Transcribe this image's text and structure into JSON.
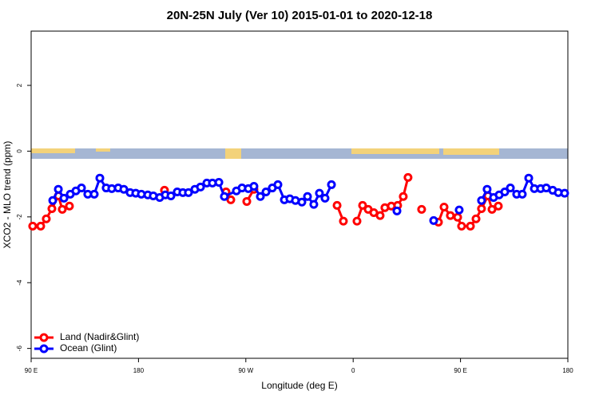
{
  "chart_data": {
    "type": "line",
    "title": "20N-25N July (Ver 10)   2015-01-01 to 2020-12-18",
    "x_label": "Longitude (deg E)",
    "y_label": "XCO2 - MLO trend (ppm)",
    "xlim": [
      90,
      540
    ],
    "ylim": [
      -6.3,
      3.65
    ],
    "xticks": [
      {
        "value": 90,
        "label": "90 E"
      },
      {
        "value": 180,
        "label": "180"
      },
      {
        "value": 270,
        "label": "90 W"
      },
      {
        "value": 360,
        "label": "0"
      },
      {
        "value": 450,
        "label": "90 E"
      },
      {
        "value": 540,
        "label": "180"
      }
    ],
    "yticks": [
      -6,
      -4,
      -2,
      0,
      2
    ],
    "legend": "bottomleft",
    "series": [
      {
        "name": "Land (Nadir&Glint)",
        "color": "#ff0000",
        "x": [
          91.3,
          98.0,
          102.7,
          107.4,
          112.8,
          116.1,
          122.1,
          null,
          201.8,
          null,
          253.4,
          257.4,
          null,
          270.8,
          276.8,
          null,
          346.5,
          351.8,
          null,
          363.2,
          367.9,
          372.6,
          377.3,
          382.6,
          386.6,
          392.0,
          397.3,
          402.0,
          406.0,
          null,
          417.4,
          null,
          431.5,
          436.2,
          441.5,
          447.6,
          450.9,
          458.3,
          463.0,
          467.6,
          473.0,
          476.4,
          481.7
        ],
        "values": [
          -2.28,
          -2.28,
          -2.06,
          -1.75,
          -1.36,
          -1.77,
          -1.67,
          null,
          -1.19,
          null,
          -1.24,
          -1.48,
          null,
          -1.53,
          -1.16,
          null,
          -1.65,
          -2.13,
          null,
          -2.13,
          -1.65,
          -1.77,
          -1.87,
          -1.96,
          -1.72,
          -1.67,
          -1.65,
          -1.38,
          -0.8,
          null,
          -1.77,
          null,
          -2.16,
          -1.7,
          -1.96,
          -2.01,
          -2.28,
          -2.28,
          -2.06,
          -1.75,
          -1.36,
          -1.77,
          -1.67
        ]
      },
      {
        "name": "Ocean (Glint)",
        "color": "#0000ff",
        "x": [
          108.1,
          112.8,
          117.5,
          122.8,
          127.5,
          132.2,
          137.5,
          142.9,
          147.6,
          152.9,
          157.6,
          163.0,
          167.7,
          173.0,
          177.7,
          182.4,
          187.8,
          192.4,
          197.8,
          202.5,
          207.2,
          212.5,
          217.2,
          221.9,
          227.3,
          232.0,
          237.3,
          242.0,
          247.4,
          252.0,
          262.1,
          266.8,
          272.1,
          276.8,
          282.2,
          286.9,
          292.2,
          296.9,
          302.3,
          306.9,
          311.6,
          317.0,
          321.7,
          327.0,
          331.7,
          336.4,
          341.8,
          null,
          396.7,
          null,
          427.5,
          null,
          448.9,
          null,
          467.6,
          472.3,
          477.7,
          482.4,
          487.1,
          491.8,
          497.1,
          501.8,
          507.2,
          511.9,
          517.2,
          521.9,
          527.3,
          532.0,
          537.3
        ],
        "values": [
          -1.5,
          -1.16,
          -1.43,
          -1.31,
          -1.21,
          -1.12,
          -1.31,
          -1.31,
          -0.82,
          -1.12,
          -1.14,
          -1.12,
          -1.16,
          -1.26,
          -1.28,
          -1.31,
          -1.33,
          -1.36,
          -1.41,
          -1.33,
          -1.36,
          -1.24,
          -1.26,
          -1.26,
          -1.16,
          -1.09,
          -0.97,
          -0.97,
          -0.95,
          -1.38,
          -1.21,
          -1.12,
          -1.14,
          -1.07,
          -1.38,
          -1.24,
          -1.12,
          -1.02,
          -1.48,
          -1.45,
          -1.5,
          -1.55,
          -1.38,
          -1.62,
          -1.28,
          -1.43,
          -1.02,
          null,
          -1.82,
          null,
          -2.11,
          null,
          -1.79,
          null,
          -1.5,
          -1.16,
          -1.41,
          -1.33,
          -1.24,
          -1.12,
          -1.31,
          -1.31,
          -0.82,
          -1.14,
          -1.14,
          -1.12,
          -1.19,
          -1.26,
          -1.28
        ]
      }
    ]
  }
}
